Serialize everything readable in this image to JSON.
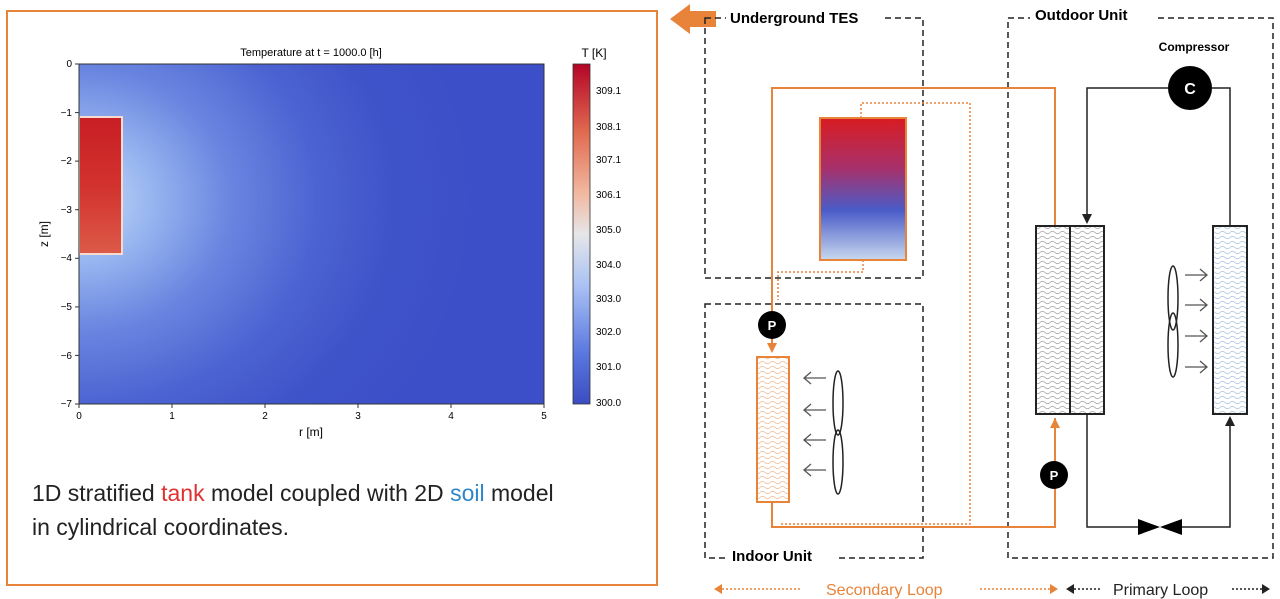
{
  "plot": {
    "title": "Temperature at t = 1000.0 [h]",
    "xlabel": "r [m]",
    "ylabel": "z [m]",
    "colorbar_label": "T [K]",
    "x_ticks": [
      "0",
      "1",
      "2",
      "3",
      "4",
      "5"
    ],
    "y_ticks": [
      "0",
      "−1",
      "−2",
      "−3",
      "−4",
      "−5",
      "−6",
      "−7"
    ],
    "colorbar_ticks": [
      "309.1",
      "308.1",
      "307.1",
      "306.1",
      "305.0",
      "304.0",
      "303.0",
      "302.0",
      "301.0",
      "300.0"
    ]
  },
  "caption": {
    "part1": "1D stratified ",
    "tank": "tank",
    "part2": " model coupled with 2D ",
    "soil": "soil",
    "part3": " model",
    "line2": "in cylindrical coordinates."
  },
  "schematic": {
    "underground_tes": "Underground TES",
    "outdoor_unit": "Outdoor Unit",
    "indoor_unit": "Indoor Unit",
    "compressor": "Compressor",
    "compressor_symbol": "C",
    "pump_symbol": "P",
    "secondary_loop": "Secondary Loop",
    "primary_loop": "Primary Loop"
  },
  "colors": {
    "accent_orange": "#e8833a",
    "soil_blue": "#3c4fc8",
    "tank_red": "#d02828"
  }
}
